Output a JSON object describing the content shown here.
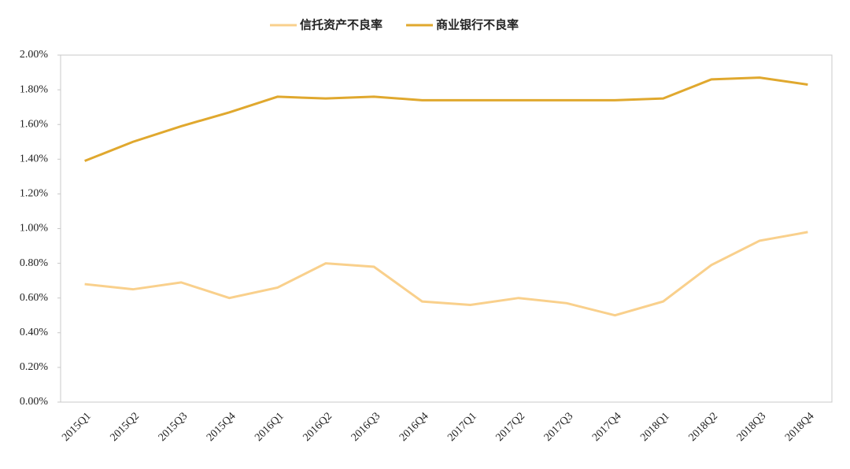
{
  "chart_data": {
    "type": "line",
    "categories": [
      "2015Q1",
      "2015Q2",
      "2015Q3",
      "2015Q4",
      "2016Q1",
      "2016Q2",
      "2016Q3",
      "2016Q4",
      "2017Q1",
      "2017Q2",
      "2017Q3",
      "2017Q4",
      "2018Q1",
      "2018Q2",
      "2018Q3",
      "2018Q4"
    ],
    "series": [
      {
        "name": "信托资产不良率",
        "color": "#f9d08c",
        "values": [
          0.68,
          0.65,
          0.69,
          0.6,
          0.66,
          0.8,
          0.78,
          0.58,
          0.56,
          0.6,
          0.57,
          0.5,
          0.58,
          0.79,
          0.93,
          0.98
        ]
      },
      {
        "name": "商业银行不良率",
        "color": "#e0a82e",
        "values": [
          1.39,
          1.5,
          1.59,
          1.67,
          1.76,
          1.75,
          1.76,
          1.74,
          1.74,
          1.74,
          1.74,
          1.74,
          1.75,
          1.86,
          1.87,
          1.83
        ]
      }
    ],
    "ylim": [
      0,
      2
    ],
    "yticks": [
      {
        "value": 0,
        "label": "0.00%"
      },
      {
        "value": 0.2,
        "label": "0.20%"
      },
      {
        "value": 0.4,
        "label": "0.40%"
      },
      {
        "value": 0.6,
        "label": "0.60%"
      },
      {
        "value": 0.8,
        "label": "0.80%"
      },
      {
        "value": 1,
        "label": "1.00%"
      },
      {
        "value": 1.2,
        "label": "1.20%"
      },
      {
        "value": 1.4,
        "label": "1.40%"
      },
      {
        "value": 1.6,
        "label": "1.60%"
      },
      {
        "value": 1.8,
        "label": "1.80%"
      },
      {
        "value": 2,
        "label": "2.00%"
      }
    ],
    "legend": "top"
  }
}
